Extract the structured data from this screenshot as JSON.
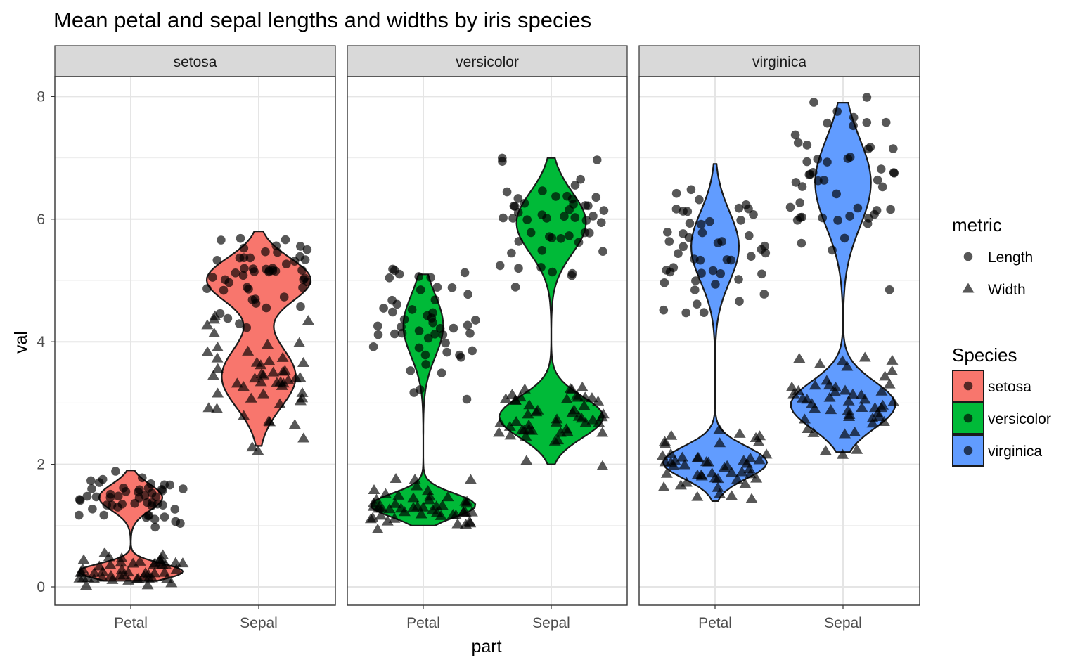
{
  "chart_data": {
    "type": "violin",
    "title": "Mean petal and sepal lengths and widths by iris species",
    "xlabel": "part",
    "ylabel": "val",
    "ylim": [
      -0.3,
      8.6
    ],
    "yticks": [
      "0",
      "2",
      "4",
      "6",
      "8"
    ],
    "categories": [
      "Petal",
      "Sepal"
    ],
    "facets": [
      "setosa",
      "versicolor",
      "virginica"
    ],
    "grid": true,
    "legend_position": "right",
    "metric_legend": {
      "title": "metric",
      "entries": [
        {
          "label": "Length",
          "shape": "circle"
        },
        {
          "label": "Width",
          "shape": "triangle"
        }
      ]
    },
    "species_legend": {
      "title": "Species",
      "entries": [
        {
          "label": "setosa",
          "color": "#F8766D"
        },
        {
          "label": "versicolor",
          "color": "#00BA38"
        },
        {
          "label": "virginica",
          "color": "#619CFF"
        }
      ]
    },
    "violins": [
      {
        "species": "setosa",
        "part": "Petal",
        "color": "#F8766D",
        "range": [
          0.1,
          1.9
        ],
        "length": {
          "n": 50,
          "min": 1.0,
          "max": 1.9,
          "mean": 1.46
        },
        "width": {
          "n": 50,
          "min": 0.1,
          "max": 0.6,
          "mean": 0.25
        }
      },
      {
        "species": "setosa",
        "part": "Sepal",
        "color": "#F8766D",
        "range": [
          2.3,
          5.8
        ],
        "length": {
          "n": 50,
          "min": 4.3,
          "max": 5.8,
          "mean": 5.01
        },
        "width": {
          "n": 50,
          "min": 2.3,
          "max": 4.4,
          "mean": 3.43
        }
      },
      {
        "species": "versicolor",
        "part": "Petal",
        "color": "#00BA38",
        "range": [
          1.0,
          5.1
        ],
        "length": {
          "n": 50,
          "min": 3.0,
          "max": 5.1,
          "mean": 4.26
        },
        "width": {
          "n": 50,
          "min": 1.0,
          "max": 1.8,
          "mean": 1.33
        }
      },
      {
        "species": "versicolor",
        "part": "Sepal",
        "color": "#00BA38",
        "range": [
          2.0,
          7.0
        ],
        "length": {
          "n": 50,
          "min": 4.9,
          "max": 7.0,
          "mean": 5.94
        },
        "width": {
          "n": 50,
          "min": 2.0,
          "max": 3.4,
          "mean": 2.77
        }
      },
      {
        "species": "virginica",
        "part": "Petal",
        "color": "#619CFF",
        "range": [
          1.4,
          6.9
        ],
        "length": {
          "n": 50,
          "min": 4.5,
          "max": 6.9,
          "mean": 5.55
        },
        "width": {
          "n": 50,
          "min": 1.4,
          "max": 2.5,
          "mean": 2.03
        }
      },
      {
        "species": "virginica",
        "part": "Sepal",
        "color": "#619CFF",
        "range": [
          2.2,
          7.9
        ],
        "length": {
          "n": 50,
          "min": 4.9,
          "max": 7.9,
          "mean": 6.59
        },
        "width": {
          "n": 50,
          "min": 2.2,
          "max": 3.8,
          "mean": 2.97
        }
      }
    ]
  }
}
